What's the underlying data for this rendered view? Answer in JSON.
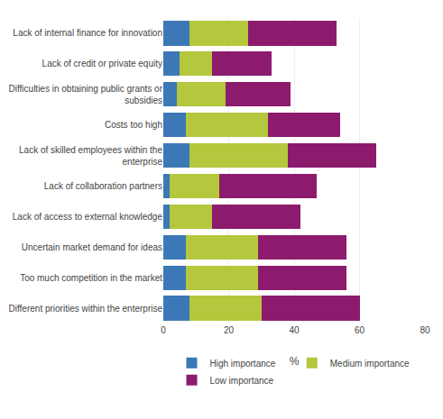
{
  "chart_data": {
    "type": "bar",
    "orientation": "horizontal",
    "stacked": true,
    "categories": [
      "Lack of internal finance for innovation",
      "Lack of credit or private equity",
      "Difficulties in obtaining public grants or\nsubsidies",
      "Costs too high",
      "Lack of skilled employees within the\nenterprise",
      "Lack of collaboration partners",
      "Lack of access to external knowledge",
      "Uncertain market demand for ideas",
      "Too much competition in the market",
      "Different priorities within the enterprise"
    ],
    "series": [
      {
        "name": "High importance",
        "color": "#3c78b5",
        "values": [
          8,
          5,
          4,
          7,
          8,
          2,
          2,
          7,
          7,
          8
        ]
      },
      {
        "name": "Medium importance",
        "color": "#b5c73c",
        "values": [
          18,
          10,
          15,
          25,
          30,
          15,
          13,
          22,
          22,
          22
        ]
      },
      {
        "name": "Low importance",
        "color": "#8c1b6e",
        "values": [
          27,
          18,
          20,
          22,
          27,
          30,
          27,
          27,
          27,
          30
        ]
      }
    ],
    "xlabel": "%",
    "xlim": [
      0,
      80
    ],
    "xticks": [
      0,
      20,
      40,
      60,
      80
    ],
    "grid": true,
    "legend": "bottom"
  }
}
